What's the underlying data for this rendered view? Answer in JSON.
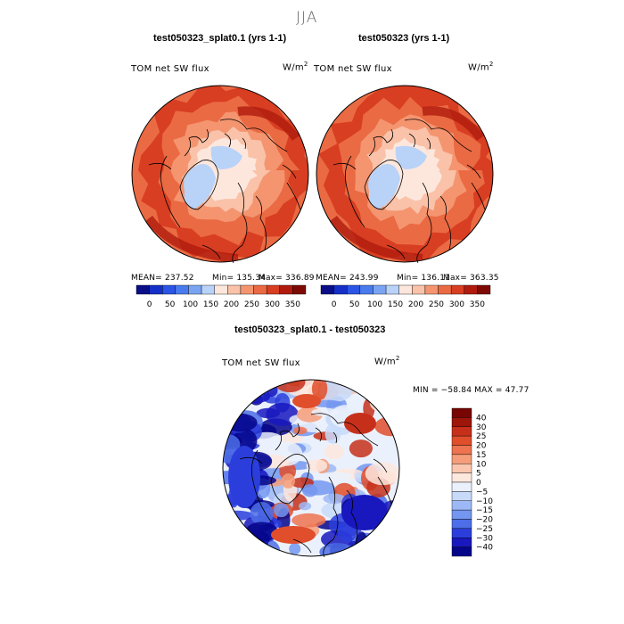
{
  "season": "JJA",
  "colors": {
    "abs_scale": [
      "#0a0e87",
      "#1530c8",
      "#2a55e6",
      "#4a7bee",
      "#7aa4f2",
      "#b8d2f8",
      "#fde7dd",
      "#f9c2a9",
      "#f49570",
      "#ea6a43",
      "#d83e22",
      "#b01b0e",
      "#7e0a05"
    ],
    "diff_scale": [
      "#05058a",
      "#1818be",
      "#2b3edc",
      "#4d6ee8",
      "#7396f0",
      "#9db9f5",
      "#c8daf9",
      "#ebf1fc",
      "#fde8de",
      "#fac6ad",
      "#f59d7a",
      "#ee7350",
      "#e04e2c",
      "#c6301a",
      "#9e1509",
      "#760503"
    ]
  },
  "panels": [
    {
      "title": "test050323_splat0.1 (yrs 1-1)",
      "label": "TOM net SW flux",
      "units": "W/m",
      "units_sup": "2",
      "mean": "MEAN= 237.52",
      "min": "Min= 135.34",
      "max": "Max= 336.89"
    },
    {
      "title": "test050323 (yrs 1-1)",
      "label": "TOM net SW flux",
      "units": "W/m",
      "units_sup": "2",
      "mean": "MEAN= 243.99",
      "min": "Min= 136.11",
      "max": "Max= 363.35"
    }
  ],
  "diff": {
    "title": "test050323_splat0.1 - test050323",
    "label": "TOM net SW flux",
    "units": "W/m",
    "units_sup": "2",
    "minmax": "MIN = −58.84 MAX =  47.77"
  },
  "chart_data": [
    {
      "type": "heatmap",
      "title": "test050323_splat0.1 (yrs 1-1)",
      "variable": "TOM net SW flux",
      "units": "W/m2",
      "projection": "north polar stereographic",
      "stats": {
        "mean": 237.52,
        "min": 135.34,
        "max": 336.89
      },
      "colorbar_ticks": [
        0,
        50,
        100,
        150,
        200,
        250,
        300,
        350
      ]
    },
    {
      "type": "heatmap",
      "title": "test050323 (yrs 1-1)",
      "variable": "TOM net SW flux",
      "units": "W/m2",
      "projection": "north polar stereographic",
      "stats": {
        "mean": 243.99,
        "min": 136.11,
        "max": 363.35
      },
      "colorbar_ticks": [
        0,
        50,
        100,
        150,
        200,
        250,
        300,
        350
      ]
    },
    {
      "type": "heatmap",
      "title": "test050323_splat0.1 - test050323",
      "variable": "TOM net SW flux",
      "units": "W/m2",
      "projection": "north polar stereographic",
      "stats": {
        "min": -58.84,
        "max": 47.77
      },
      "colorbar_ticks": [
        40,
        30,
        25,
        20,
        15,
        10,
        5,
        0,
        -5,
        -10,
        -15,
        -20,
        -25,
        -30,
        -40
      ]
    }
  ]
}
